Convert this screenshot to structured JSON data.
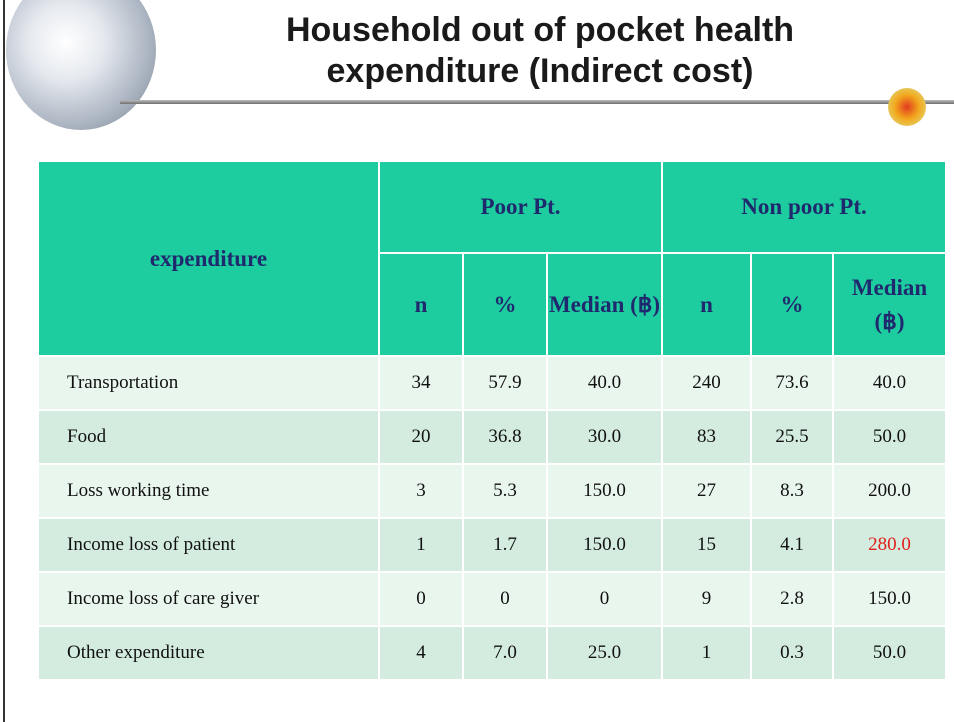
{
  "header": {
    "title_lines": [
      "Household out of pocket health",
      "expenditure (Indirect cost)"
    ]
  },
  "table": {
    "row_header": "expenditure",
    "groups": [
      "Poor Pt.",
      "Non poor Pt."
    ],
    "subheaders": [
      "n",
      "%",
      "Median (฿)",
      "n",
      "%",
      "Median (฿)"
    ],
    "rows": [
      [
        "Transportation",
        "34",
        "57.9",
        "40.0",
        "240",
        "73.6",
        "40.0"
      ],
      [
        "Food",
        "20",
        "36.8",
        "30.0",
        "83",
        "25.5",
        "50.0"
      ],
      [
        "Loss working time",
        "3",
        "5.3",
        "150.0",
        "27",
        "8.3",
        "200.0"
      ],
      [
        "Income loss of patient",
        "1",
        "1.7",
        "150.0",
        "15",
        "4.1",
        "280.0"
      ],
      [
        "Income loss of care giver",
        "0",
        "0",
        "0",
        "9",
        "2.8",
        "150.0"
      ],
      [
        "Other expenditure",
        "4",
        "7.0",
        "25.0",
        "1",
        "0.3",
        "50.0"
      ]
    ]
  }
}
